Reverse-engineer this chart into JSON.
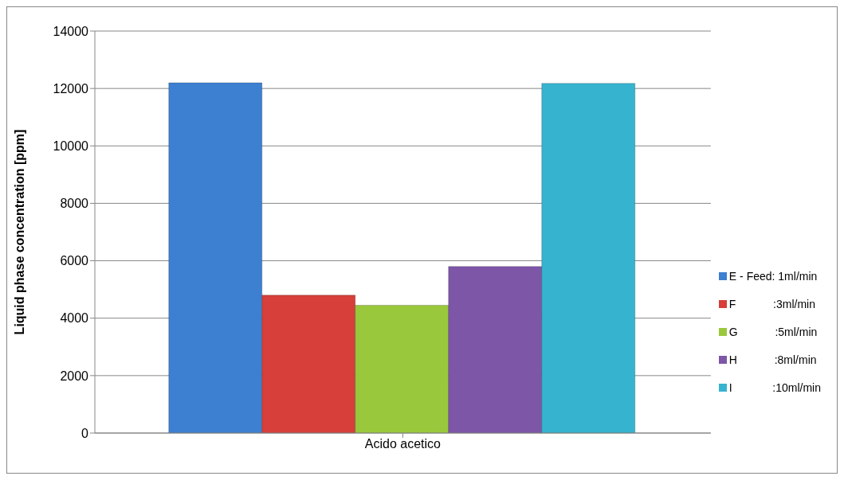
{
  "chart_data": {
    "type": "bar",
    "categories": [
      "Acido acetico"
    ],
    "ylabel": "Liquid phase concentration [ppm]",
    "ylim": [
      0,
      14000
    ],
    "yticks": [
      0,
      2000,
      4000,
      6000,
      8000,
      10000,
      12000,
      14000
    ],
    "grid": "y",
    "legend": "right",
    "series": [
      {
        "name": "E - Feed: 1ml/min",
        "color": "#3d7fd0",
        "values": [
          12200
        ]
      },
      {
        "name": "F            :3ml/min",
        "color": "#d63f3a",
        "values": [
          4800
        ]
      },
      {
        "name": "G            :5ml/min",
        "color": "#9ac83c",
        "values": [
          4450
        ]
      },
      {
        "name": "H            :8ml/min",
        "color": "#7e56a8",
        "values": [
          5800
        ]
      },
      {
        "name": "I             :10ml/min",
        "color": "#36b3cf",
        "values": [
          12180
        ]
      }
    ]
  }
}
